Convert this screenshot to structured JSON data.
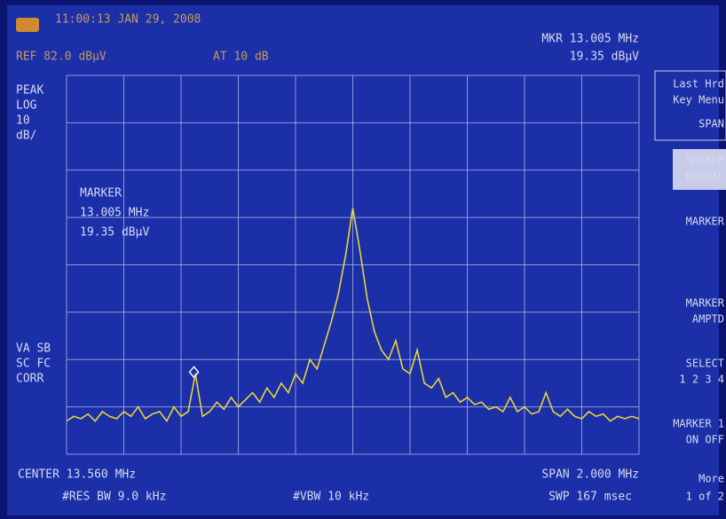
{
  "header": {
    "time": "11:00:13 JAN 29, 2008",
    "ref": "REF 82.0 dBµV",
    "atten": "AT 10 dB",
    "mkr_freq": "MKR 13.005 MHz",
    "mkr_level": "19.35 dBµV"
  },
  "left_labels": [
    "PEAK",
    "LOG",
    "10",
    "dB/"
  ],
  "left_labels_low": [
    "VA SB",
    "SC FC",
    "CORR"
  ],
  "marker_box": [
    "MARKER",
    "13.005 MHz",
    "19.35 dBµV"
  ],
  "footer": {
    "center": "CENTER 13.560 MHz",
    "rbw": "#RES BW 9.0 kHz",
    "vbw": "#VBW 10 kHz",
    "span": "SPAN 2.000 MHz",
    "sweep": "SWP 167 msec"
  },
  "softkeys": [
    "Last Hrd",
    "Key Menu",
    "SPAN",
    "MARKER",
    "NORMAL",
    "MARKER",
    "MARKER",
    "AMPTD",
    "SELECT",
    "1 2 3 4",
    "MARKER 1",
    "ON OFF",
    "More",
    "1 of 2"
  ],
  "trace": {
    "type": "line",
    "color": "#e8d43c",
    "xlim": [
      12.56,
      14.56
    ],
    "ylim": [
      2,
      82
    ],
    "x": [
      12.56,
      12.585,
      12.61,
      12.635,
      12.66,
      12.685,
      12.71,
      12.735,
      12.76,
      12.785,
      12.81,
      12.835,
      12.86,
      12.885,
      12.91,
      12.935,
      12.96,
      12.985,
      13.01,
      13.035,
      13.06,
      13.085,
      13.11,
      13.135,
      13.16,
      13.185,
      13.21,
      13.235,
      13.26,
      13.285,
      13.31,
      13.335,
      13.36,
      13.385,
      13.41,
      13.435,
      13.46,
      13.485,
      13.51,
      13.535,
      13.56,
      13.585,
      13.61,
      13.635,
      13.66,
      13.685,
      13.71,
      13.735,
      13.76,
      13.785,
      13.81,
      13.835,
      13.86,
      13.885,
      13.91,
      13.935,
      13.96,
      13.985,
      14.01,
      14.035,
      14.06,
      14.085,
      14.11,
      14.135,
      14.16,
      14.185,
      14.21,
      14.235,
      14.26,
      14.285,
      14.31,
      14.335,
      14.36,
      14.385,
      14.41,
      14.435,
      14.46,
      14.485,
      14.51,
      14.535,
      14.56
    ],
    "values": [
      9,
      10,
      9.5,
      10.5,
      9,
      11,
      10,
      9.5,
      11,
      10,
      12,
      9.5,
      10.5,
      11,
      9,
      12,
      10,
      11,
      19,
      10,
      11,
      13,
      11.5,
      14,
      12,
      13.5,
      15,
      13,
      16,
      14,
      17,
      15,
      19,
      17,
      22,
      20,
      25,
      30,
      36,
      44,
      54,
      45,
      35,
      28,
      24,
      22,
      26,
      20,
      19,
      24,
      17,
      16,
      18,
      14,
      15,
      13,
      14,
      12.5,
      13,
      11.5,
      12,
      11,
      14,
      11,
      12,
      10.5,
      11,
      15,
      11,
      10,
      11.5,
      10,
      9.5,
      11,
      10,
      10.5,
      9,
      10,
      9.5,
      10,
      9.5
    ]
  },
  "marker": {
    "x": 13.005,
    "value": 19.35
  }
}
